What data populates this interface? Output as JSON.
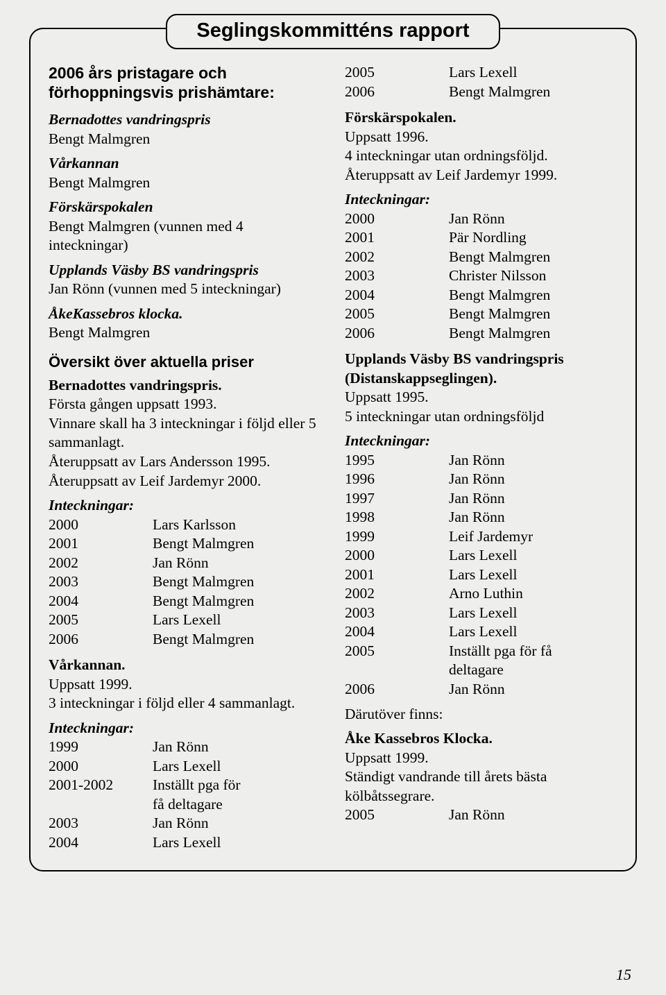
{
  "title": "Seglingskommitténs rapport",
  "pageNumber": "15",
  "left": {
    "heading": "2006 års pristagare och förhoppningsvis prishämtare:",
    "prizes": [
      {
        "name": "Bernadottes vandringspris",
        "winner": "Bengt Malmgren"
      },
      {
        "name": "Vårkannan",
        "winner": "Bengt Malmgren"
      },
      {
        "name": "Förskärspokalen",
        "winner": "Bengt Malmgren (vunnen med 4 inteckningar)"
      },
      {
        "name": "Upplands Väsby BS vandringspris",
        "winner": "Jan Rönn (vunnen med 5 inteckningar)"
      },
      {
        "name": "ÅkeKassebros klocka.",
        "winner": "Bengt Malmgren"
      }
    ],
    "overviewHeading": "Översikt över aktuella priser",
    "bernadottes": {
      "title": "Bernadottes vandringspris.",
      "para": "Första gången uppsatt 1993.\nVinnare skall ha 3 inteckningar i följd eller 5 sammanlagt.\nÅteruppsatt av Lars Andersson 1995.\nÅteruppsatt av Leif Jardemyr 2000.",
      "listLabel": "Inteckningar:",
      "rows": [
        {
          "yr": "2000",
          "nm": "Lars Karlsson"
        },
        {
          "yr": "2001",
          "nm": "Bengt Malmgren"
        },
        {
          "yr": "2002",
          "nm": "Jan Rönn"
        },
        {
          "yr": "2003",
          "nm": "Bengt Malmgren"
        },
        {
          "yr": "2004",
          "nm": "Bengt Malmgren"
        },
        {
          "yr": "2005",
          "nm": "Lars Lexell"
        },
        {
          "yr": "2006",
          "nm": "Bengt Malmgren"
        }
      ]
    },
    "varkannan": {
      "title": "Vårkannan.",
      "para": "Uppsatt 1999.\n3 inteckningar i följd eller 4 sammanlagt.",
      "listLabel": "Inteckningar:",
      "rows": [
        {
          "yr": "1999",
          "nm": "Jan Rönn"
        },
        {
          "yr": "2000",
          "nm": "Lars Lexell"
        },
        {
          "yr": "2001-2002",
          "nm": "Inställt pga för"
        },
        {
          "yr": "",
          "nm": "få deltagare"
        },
        {
          "yr": "2003",
          "nm": "Jan Rönn"
        },
        {
          "yr": "2004",
          "nm": "Lars Lexell"
        }
      ]
    }
  },
  "right": {
    "topRows": [
      {
        "yr": "2005",
        "nm": "Lars Lexell"
      },
      {
        "yr": "2006",
        "nm": "Bengt Malmgren"
      }
    ],
    "forskars": {
      "title": "Förskärspokalen.",
      "para": "Uppsatt 1996.\n4 inteckningar utan ordningsföljd.\nÅteruppsatt av Leif Jardemyr 1999.",
      "listLabel": "Inteckningar:",
      "rows": [
        {
          "yr": "2000",
          "nm": "Jan Rönn"
        },
        {
          "yr": "2001",
          "nm": "Pär Nordling"
        },
        {
          "yr": "2002",
          "nm": "Bengt Malmgren"
        },
        {
          "yr": "2003",
          "nm": "Christer Nilsson"
        },
        {
          "yr": "2004",
          "nm": "Bengt Malmgren"
        },
        {
          "yr": "2005",
          "nm": "Bengt Malmgren"
        },
        {
          "yr": "2006",
          "nm": "Bengt Malmgren"
        }
      ]
    },
    "upplands": {
      "title": "Upplands Väsby BS vandringspris (Distanskappseglingen).",
      "para": "Uppsatt 1995.\n5 inteckningar utan ordningsföljd",
      "listLabel": "Inteckningar:",
      "rows": [
        {
          "yr": "1995",
          "nm": "Jan Rönn"
        },
        {
          "yr": "1996",
          "nm": "Jan Rönn"
        },
        {
          "yr": "1997",
          "nm": "Jan Rönn"
        },
        {
          "yr": "1998",
          "nm": "Jan Rönn"
        },
        {
          "yr": "1999",
          "nm": "Leif Jardemyr"
        },
        {
          "yr": "2000",
          "nm": "Lars Lexell"
        },
        {
          "yr": "2001",
          "nm": "Lars Lexell"
        },
        {
          "yr": "2002",
          "nm": "Arno Luthin"
        },
        {
          "yr": "2003",
          "nm": "Lars Lexell"
        },
        {
          "yr": "2004",
          "nm": "Lars Lexell"
        },
        {
          "yr": "2005",
          "nm": "Inställt pga för få"
        },
        {
          "yr": "",
          "nm": "deltagare"
        },
        {
          "yr": "2006",
          "nm": "Jan Rönn"
        }
      ]
    },
    "darutover": "Därutöver finns:",
    "kassebros": {
      "title": "Åke Kassebros Klocka.",
      "para": "Uppsatt 1999.\nStändigt vandrande till årets bästa kölbåtssegrare.",
      "rows": [
        {
          "yr": "2005",
          "nm": "Jan Rönn"
        }
      ]
    }
  }
}
